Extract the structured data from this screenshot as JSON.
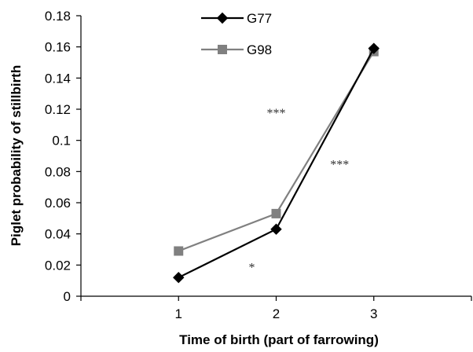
{
  "chart_data": {
    "type": "line",
    "x": [
      1,
      2,
      3
    ],
    "xlabel": "Time of birth (part of farrowing)",
    "ylabel": "Piglet probability of stillbirth",
    "xlim": [
      0,
      4
    ],
    "ylim": [
      0,
      0.18
    ],
    "x_ticks": [
      "1",
      "2",
      "3"
    ],
    "y_ticks": [
      "0",
      "0.02",
      "0.04",
      "0.06",
      "0.08",
      "0.1",
      "0.12",
      "0.14",
      "0.16",
      "0.18"
    ],
    "grid": false,
    "legend_position": "top-center",
    "series": [
      {
        "name": "G77",
        "values": [
          0.012,
          0.043,
          0.159
        ],
        "marker": "diamond",
        "color": "#000000"
      },
      {
        "name": "G98",
        "values": [
          0.029,
          0.053,
          0.157
        ],
        "marker": "square",
        "color": "#808080"
      }
    ],
    "annotations": [
      {
        "text": "*",
        "x": 1.75,
        "y": 0.016
      },
      {
        "text": "***",
        "x": 2.0,
        "y": 0.115
      },
      {
        "text": "***",
        "x": 2.65,
        "y": 0.082
      }
    ]
  }
}
